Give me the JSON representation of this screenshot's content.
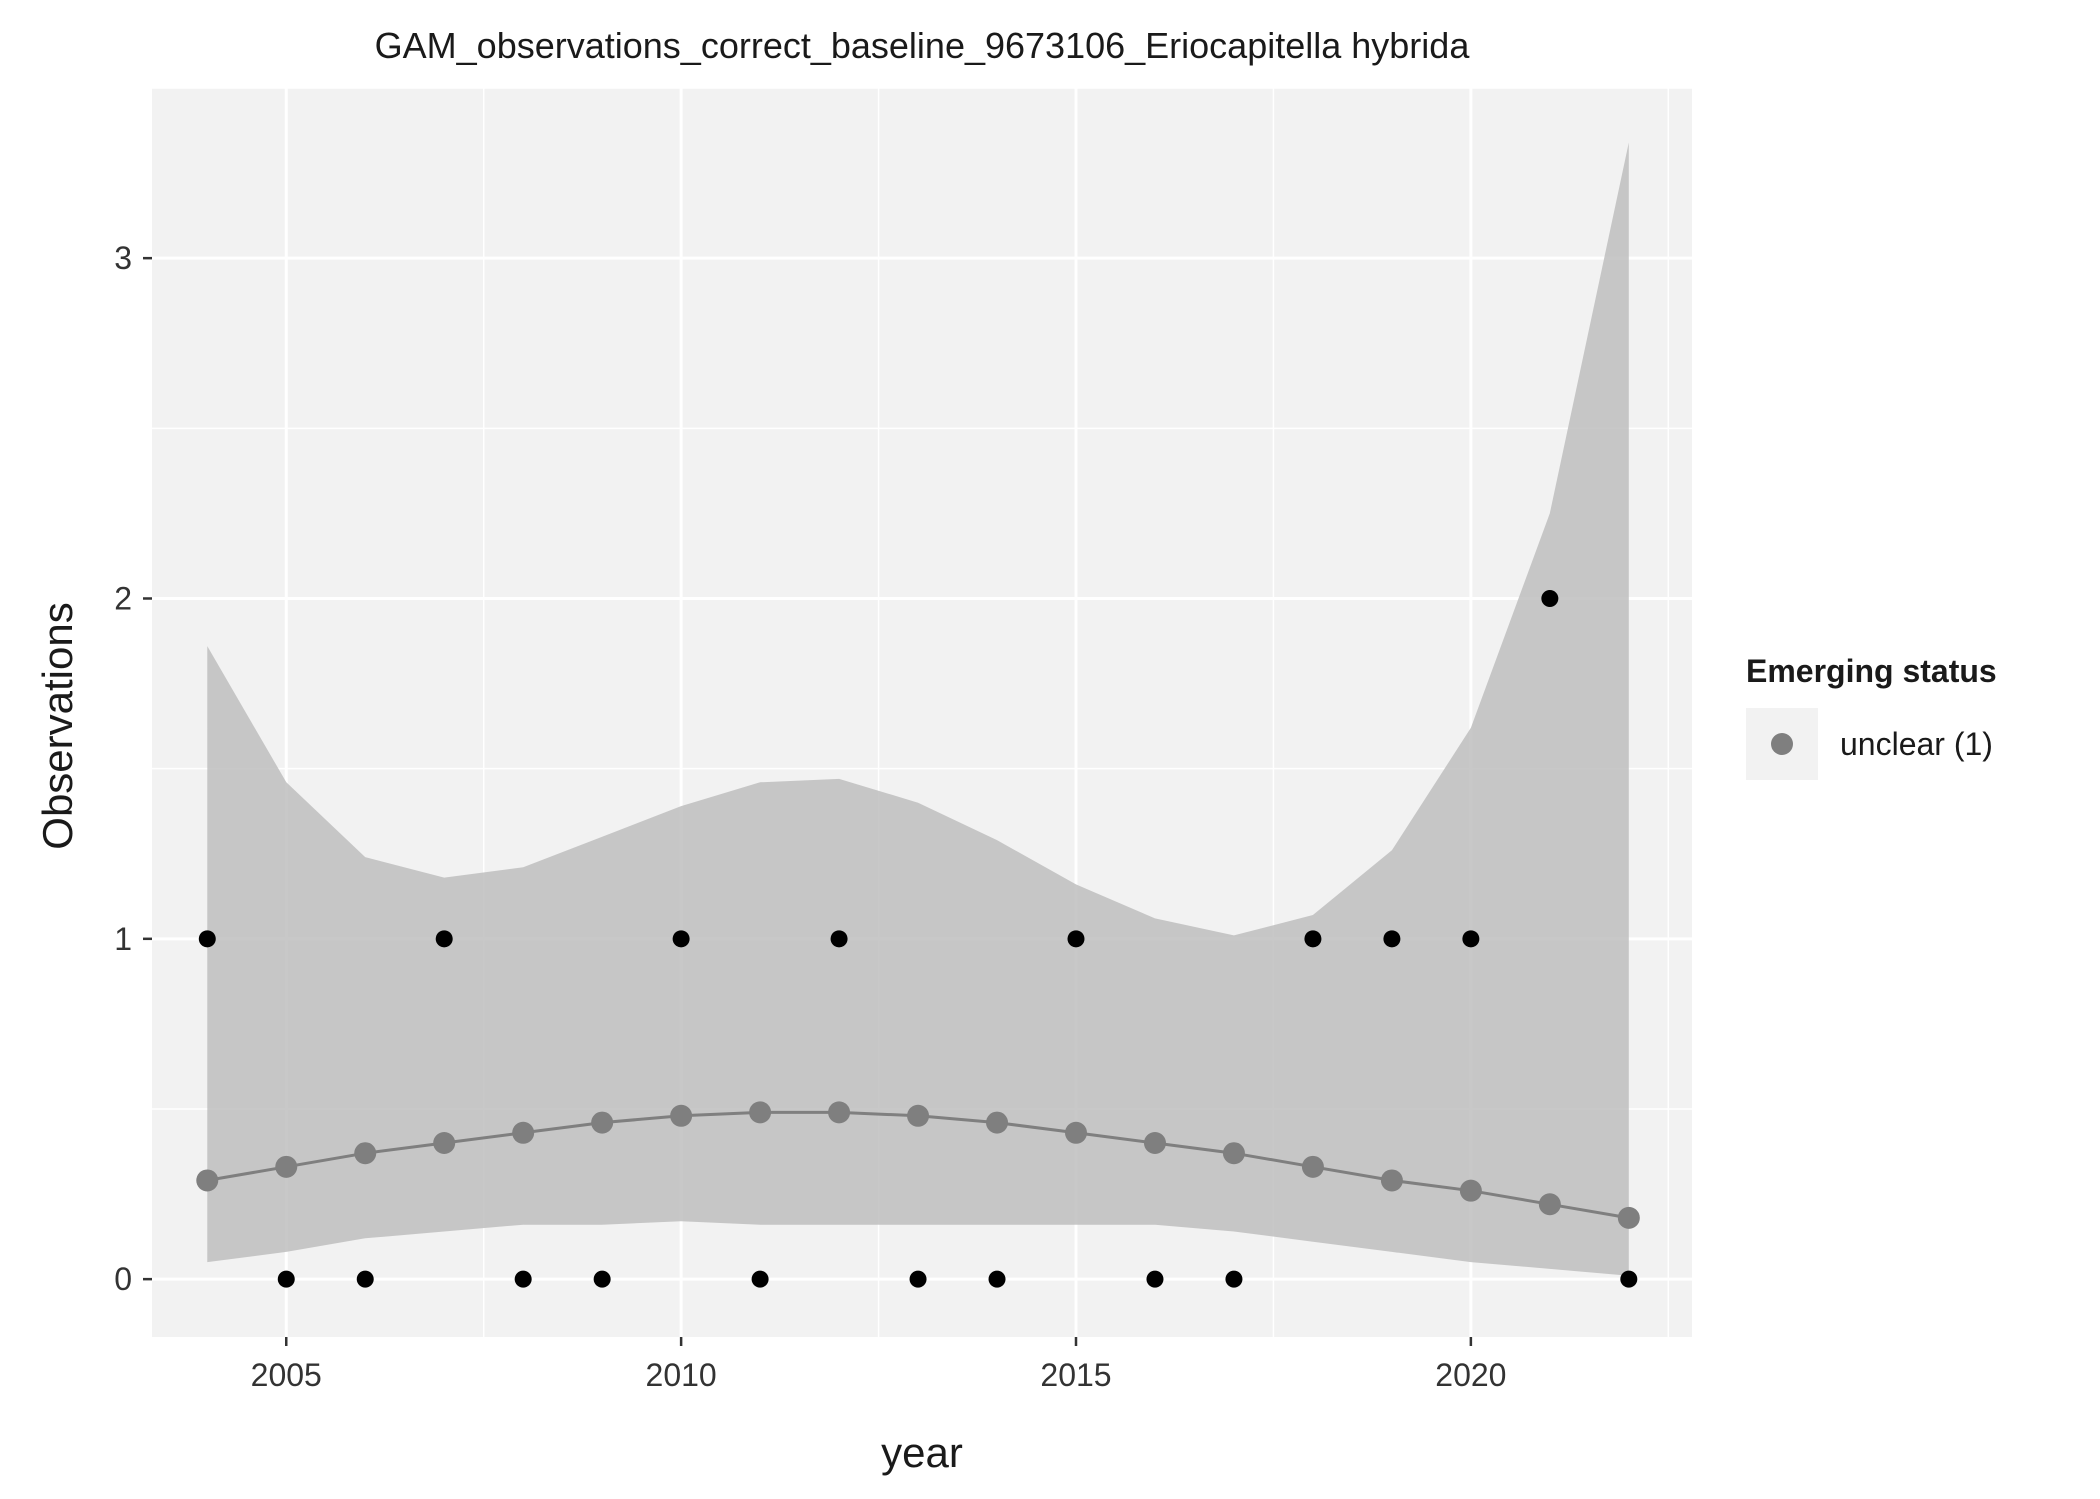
{
  "chart_data": {
    "type": "scatter",
    "title": "GAM_observations_correct_baseline_9673106_Eriocapitella hybrida",
    "xlabel": "year",
    "ylabel": "Observations",
    "xlim": [
      2003.3,
      2022.8
    ],
    "ylim": [
      -0.17,
      3.5
    ],
    "x_ticks": [
      2005,
      2010,
      2015,
      2020
    ],
    "y_ticks": [
      0,
      1,
      2,
      3
    ],
    "grid": true,
    "legend": {
      "title": "Emerging status",
      "position": "right",
      "entries": [
        {
          "label": "unclear (1)",
          "color": "#7f7f7f"
        }
      ]
    },
    "observations": {
      "x": [
        2004,
        2005,
        2006,
        2007,
        2008,
        2009,
        2010,
        2011,
        2012,
        2013,
        2014,
        2015,
        2016,
        2017,
        2018,
        2019,
        2020,
        2021,
        2022
      ],
      "y": [
        1,
        0,
        0,
        1,
        0,
        0,
        1,
        0,
        1,
        0,
        0,
        1,
        0,
        0,
        1,
        1,
        1,
        2,
        0
      ]
    },
    "fit": {
      "x": [
        2004,
        2005,
        2006,
        2007,
        2008,
        2009,
        2010,
        2011,
        2012,
        2013,
        2014,
        2015,
        2016,
        2017,
        2018,
        2019,
        2020,
        2021,
        2022
      ],
      "y": [
        0.29,
        0.33,
        0.37,
        0.4,
        0.43,
        0.46,
        0.48,
        0.49,
        0.49,
        0.48,
        0.46,
        0.43,
        0.4,
        0.37,
        0.33,
        0.29,
        0.26,
        0.22,
        0.18
      ],
      "lower": [
        0.05,
        0.08,
        0.12,
        0.14,
        0.16,
        0.16,
        0.17,
        0.16,
        0.16,
        0.16,
        0.16,
        0.16,
        0.16,
        0.14,
        0.11,
        0.08,
        0.05,
        0.03,
        0.01
      ],
      "upper": [
        1.86,
        1.46,
        1.24,
        1.18,
        1.21,
        1.3,
        1.39,
        1.46,
        1.47,
        1.4,
        1.29,
        1.16,
        1.06,
        1.01,
        1.07,
        1.26,
        1.62,
        2.25,
        3.34
      ]
    },
    "colors": {
      "panel_background": "#f2f2f2",
      "gridline": "#ffffff",
      "ribbon": "#bebebe",
      "fit": "#7f7f7f",
      "observation_point": "#000000"
    }
  }
}
